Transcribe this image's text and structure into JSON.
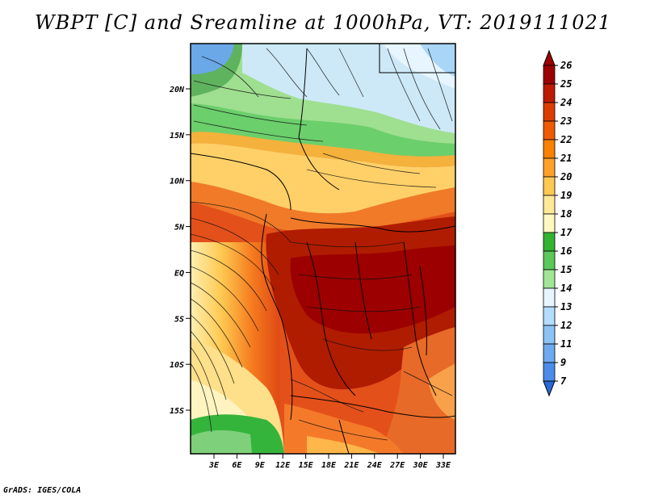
{
  "title": "WBPT [C] and Sreamline at 1000hPa, VT: 2019111021",
  "credit": "GrADS: IGES/COLA",
  "map": {
    "lat_ticks": [
      "20N",
      "15N",
      "10N",
      "5N",
      "EQ",
      "5S",
      "10S",
      "15S"
    ],
    "lon_ticks": [
      "3E",
      "6E",
      "9E",
      "12E",
      "15E",
      "18E",
      "21E",
      "24E",
      "27E",
      "30E",
      "33E"
    ]
  },
  "colorbar": {
    "levels": [
      "26",
      "25",
      "24",
      "23",
      "22",
      "21",
      "20",
      "19",
      "18",
      "17",
      "16",
      "15",
      "14",
      "13",
      "12",
      "11",
      "9",
      "7"
    ],
    "colors": [
      "#9c0000",
      "#be1a00",
      "#dc3c00",
      "#f05a00",
      "#fa8200",
      "#ffa028",
      "#ffc850",
      "#ffe896",
      "#fff8c0",
      "#32b432",
      "#5ac85a",
      "#a0e696",
      "#e6f5ff",
      "#b4dcff",
      "#8cc3f5",
      "#6eaaf0",
      "#4b8cea",
      "#2869d7"
    ]
  }
}
